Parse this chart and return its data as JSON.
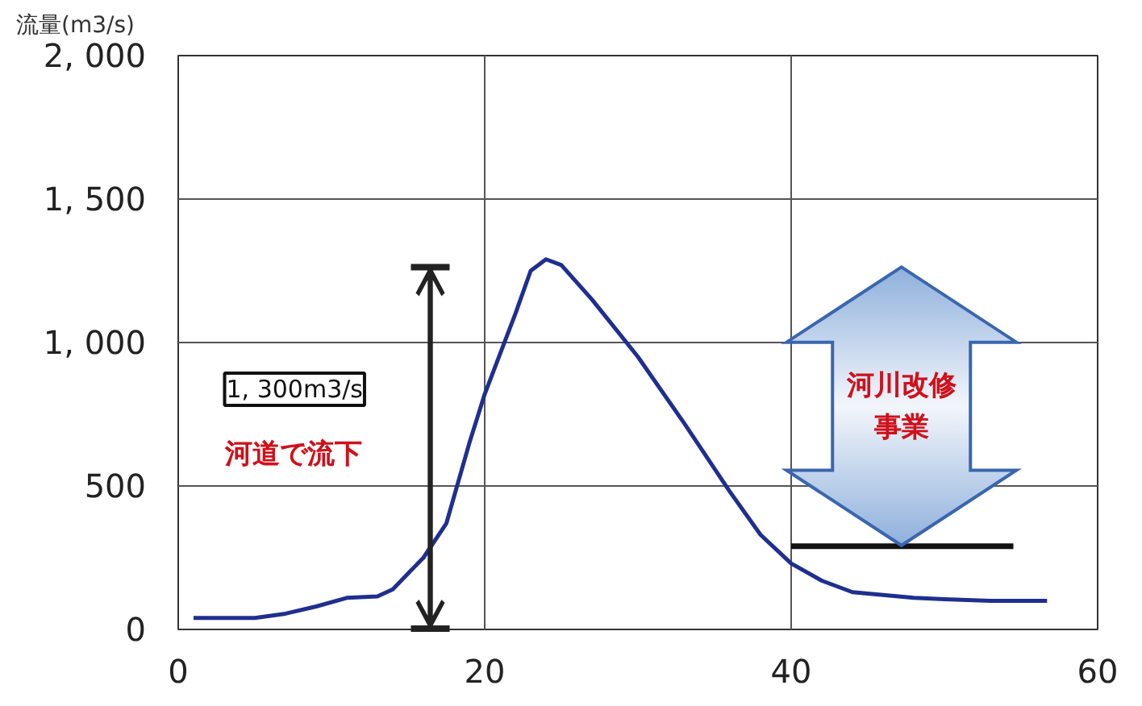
{
  "chart_data": {
    "type": "line",
    "ylabel": "流量(m3/s)",
    "x": [
      1,
      3,
      5,
      7,
      9,
      11,
      13,
      14,
      16,
      17.5,
      19,
      20,
      22,
      23,
      24,
      25,
      27,
      30,
      33,
      36,
      38,
      40,
      42,
      44,
      46,
      48,
      50,
      53,
      56.7
    ],
    "series": [
      {
        "color": "#1f2f8f",
        "values": [
          40,
          40,
          40,
          55,
          80,
          110,
          115,
          140,
          250,
          370,
          650,
          820,
          1100,
          1250,
          1290,
          1270,
          1150,
          950,
          720,
          480,
          330,
          230,
          170,
          130,
          120,
          110,
          105,
          100,
          100
        ]
      },
      {
        "color": "#111111",
        "x": [
          40,
          54.5
        ],
        "values": [
          290,
          290
        ]
      }
    ],
    "xlim": [
      0,
      60
    ],
    "xticks": [
      0,
      20,
      40,
      60
    ],
    "ylim": [
      0,
      2000
    ],
    "yticks": [
      0,
      {
        "value": 500,
        "label": "500"
      },
      {
        "value": 1000,
        "label": "1, 000"
      },
      {
        "value": 1500,
        "label": "1, 500"
      },
      {
        "value": 2000,
        "label": "2, 000"
      }
    ],
    "grid": true,
    "marker": "none",
    "line_style": "solid",
    "annotations": [
      "1, 300m3/s",
      "河道で流下",
      "河川改修事業"
    ]
  }
}
